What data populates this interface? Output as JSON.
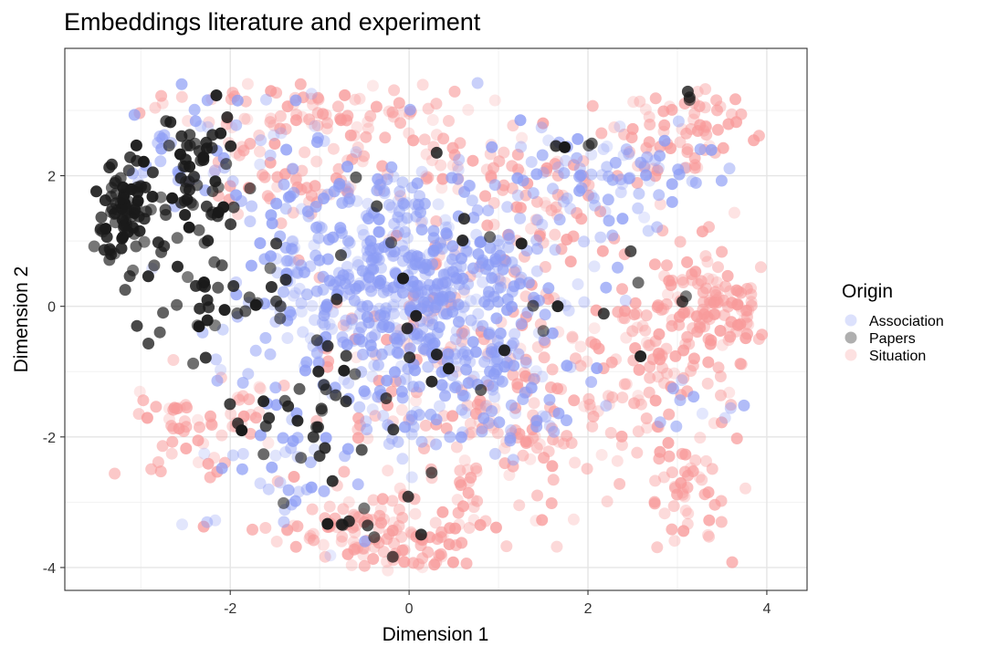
{
  "chart_data": {
    "type": "scatter",
    "title": "Embeddings literature and experiment",
    "xlabel": "Dimension 1",
    "ylabel": "Dimension 2",
    "xlim": [
      -3.85,
      4.45
    ],
    "ylim": [
      -4.35,
      3.95
    ],
    "x_ticks": [
      -2,
      0,
      2,
      4
    ],
    "y_ticks": [
      -4,
      -2,
      0,
      2
    ],
    "x_tick_labels": [
      "-2",
      "0",
      "2",
      "4"
    ],
    "y_tick_labels": [
      "-4",
      "-2",
      "0",
      "2"
    ],
    "grid": true,
    "legend_position": "right",
    "legend_title": "Origin",
    "series": [
      {
        "name": "Association",
        "color": "#8c9cf5",
        "clusters": [
          {
            "x": 0.2,
            "y": 0.1,
            "sx": 0.85,
            "sy": 1.0,
            "n": 520
          },
          {
            "x": -0.8,
            "y": 0.6,
            "sx": 0.7,
            "sy": 0.9,
            "n": 140
          },
          {
            "x": 1.9,
            "y": 2.0,
            "sx": 0.55,
            "sy": 0.35,
            "n": 60
          },
          {
            "x": -2.2,
            "y": 2.4,
            "sx": 0.5,
            "sy": 0.55,
            "n": 45
          },
          {
            "x": -1.4,
            "y": -2.7,
            "sx": 0.45,
            "sy": 0.5,
            "n": 35
          },
          {
            "x": 1.0,
            "y": -1.5,
            "sx": 0.6,
            "sy": 0.5,
            "n": 50
          },
          {
            "x": 3.0,
            "y": 2.2,
            "sx": 0.35,
            "sy": 0.3,
            "n": 15
          },
          {
            "x": 3.3,
            "y": -1.5,
            "sx": 0.3,
            "sy": 0.25,
            "n": 10
          }
        ]
      },
      {
        "name": "Papers",
        "color": "#1a1a1a",
        "clusters": [
          {
            "x": -3.2,
            "y": 1.4,
            "sx": 0.22,
            "sy": 0.45,
            "n": 95
          },
          {
            "x": -2.35,
            "y": 2.0,
            "sx": 0.22,
            "sy": 0.55,
            "n": 55
          },
          {
            "x": -2.1,
            "y": 0.1,
            "sx": 0.45,
            "sy": 0.45,
            "n": 40
          },
          {
            "x": -1.2,
            "y": -1.5,
            "sx": 0.55,
            "sy": 0.35,
            "n": 30
          },
          {
            "x": -0.5,
            "y": -3.3,
            "sx": 0.4,
            "sy": 0.45,
            "n": 14
          },
          {
            "x": 1.9,
            "y": 2.5,
            "sx": 0.2,
            "sy": 0.1,
            "n": 4
          },
          {
            "x": 3.1,
            "y": 3.2,
            "sx": 0.08,
            "sy": 0.06,
            "n": 3
          },
          {
            "x": 0.3,
            "y": 0.0,
            "sx": 0.9,
            "sy": 1.1,
            "n": 25
          },
          {
            "x": 2.8,
            "y": 0.0,
            "sx": 0.4,
            "sy": 0.3,
            "n": 4
          }
        ]
      },
      {
        "name": "Situation",
        "color": "#f89a9a",
        "clusters": [
          {
            "x": -0.2,
            "y": -3.5,
            "sx": 0.6,
            "sy": 0.3,
            "n": 130
          },
          {
            "x": 3.4,
            "y": 0.0,
            "sx": 0.35,
            "sy": 0.45,
            "n": 120
          },
          {
            "x": 3.1,
            "y": 2.7,
            "sx": 0.45,
            "sy": 0.35,
            "n": 70
          },
          {
            "x": 3.1,
            "y": -3.0,
            "sx": 0.3,
            "sy": 0.4,
            "n": 45
          },
          {
            "x": -1.0,
            "y": 3.0,
            "sx": 0.75,
            "sy": 0.3,
            "n": 75
          },
          {
            "x": 0.3,
            "y": 2.3,
            "sx": 0.6,
            "sy": 0.4,
            "n": 60
          },
          {
            "x": -2.3,
            "y": -1.9,
            "sx": 0.4,
            "sy": 0.4,
            "n": 55
          },
          {
            "x": -1.4,
            "y": 2.0,
            "sx": 0.4,
            "sy": 0.3,
            "n": 45
          },
          {
            "x": 1.4,
            "y": -2.2,
            "sx": 0.5,
            "sy": 0.5,
            "n": 55
          },
          {
            "x": 0.8,
            "y": -0.9,
            "sx": 1.2,
            "sy": 1.1,
            "n": 210
          },
          {
            "x": 2.8,
            "y": -1.2,
            "sx": 0.5,
            "sy": 0.6,
            "n": 60
          },
          {
            "x": 1.6,
            "y": 1.5,
            "sx": 0.5,
            "sy": 0.5,
            "n": 50
          }
        ]
      }
    ]
  }
}
